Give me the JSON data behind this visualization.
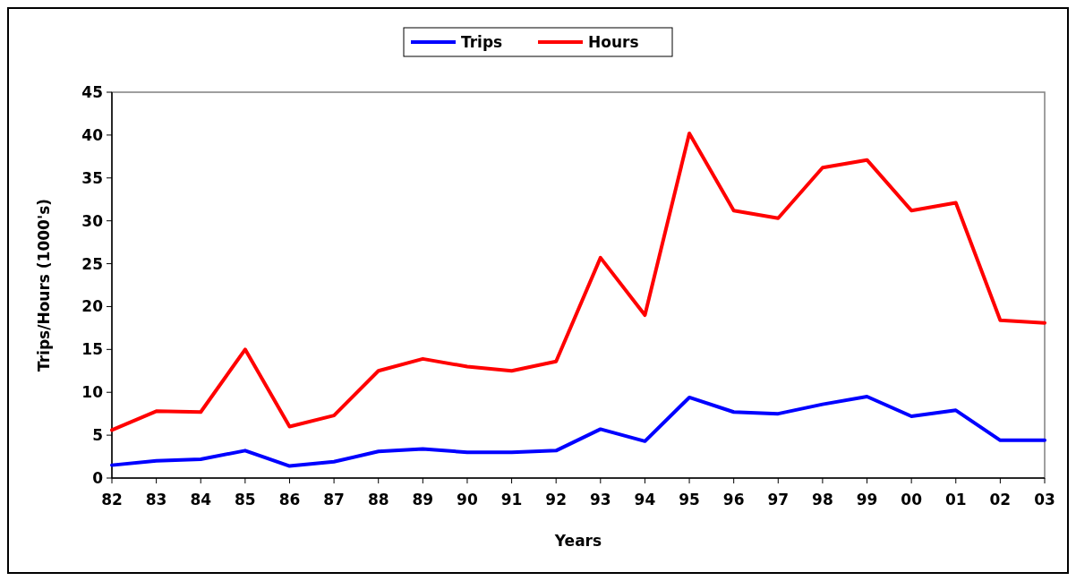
{
  "chart_data": {
    "type": "line",
    "xlabel": "Years",
    "ylabel": "Trips/Hours (1000's)",
    "categories": [
      "82",
      "83",
      "84",
      "85",
      "86",
      "87",
      "88",
      "89",
      "90",
      "91",
      "92",
      "93",
      "94",
      "95",
      "96",
      "97",
      "98",
      "99",
      "00",
      "01",
      "02",
      "03"
    ],
    "series": [
      {
        "name": "Trips",
        "color": "#0000ff",
        "values": [
          1.5,
          2.0,
          2.2,
          3.2,
          1.4,
          1.9,
          3.1,
          3.4,
          3.0,
          3.0,
          3.2,
          5.7,
          4.3,
          9.4,
          7.7,
          7.5,
          8.6,
          9.5,
          7.2,
          7.9,
          4.4,
          4.4
        ]
      },
      {
        "name": "Hours",
        "color": "#ff0000",
        "values": [
          5.6,
          7.8,
          7.7,
          15.0,
          6.0,
          7.3,
          12.5,
          13.9,
          13.0,
          12.5,
          13.6,
          25.7,
          19.0,
          40.2,
          31.2,
          30.3,
          36.2,
          37.1,
          31.2,
          32.1,
          18.4,
          18.1
        ]
      }
    ],
    "ylim": [
      0,
      45
    ],
    "yticks": [
      0,
      5,
      10,
      15,
      20,
      25,
      30,
      35,
      40,
      45
    ],
    "grid": false,
    "legend": "top",
    "marker": "none",
    "line_style": "solid"
  }
}
